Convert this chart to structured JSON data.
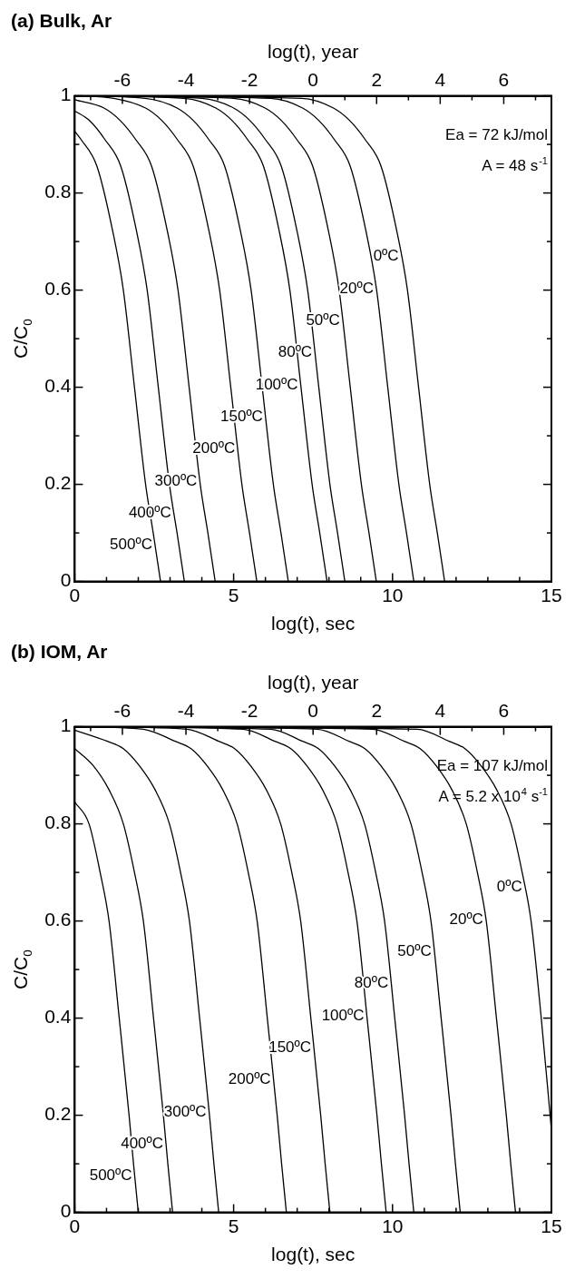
{
  "chart_data": [
    {
      "type": "line",
      "title": "(a) Bulk, Ar",
      "xlabel": "log(t), sec",
      "x2label": "log(t), year",
      "ylabel": "C/C$_{0}$",
      "marker": "none",
      "xlim": [
        0,
        15
      ],
      "xticks": [
        0,
        {
          "value": 1,
          "label": null
        },
        {
          "value": 2,
          "label": null
        },
        {
          "value": 3,
          "label": null
        },
        {
          "value": 4,
          "label": null
        },
        5,
        {
          "value": 6,
          "label": null
        },
        {
          "value": 7,
          "label": null
        },
        {
          "value": 8,
          "label": null
        },
        {
          "value": 9,
          "label": null
        },
        10,
        {
          "value": 11,
          "label": null
        },
        {
          "value": 12,
          "label": null
        },
        {
          "value": 13,
          "label": null
        },
        {
          "value": 14,
          "label": null
        },
        15
      ],
      "x2lim": [
        -7.5,
        7.5
      ],
      "x2ticks": [
        {
          "value": -7,
          "label": null
        },
        -6,
        {
          "value": -5,
          "label": null
        },
        -4,
        {
          "value": -3,
          "label": null
        },
        -2,
        {
          "value": -1,
          "label": null
        },
        0,
        {
          "value": 1,
          "label": null
        },
        2,
        {
          "value": 3,
          "label": null
        },
        4,
        {
          "value": 5,
          "label": null
        },
        6,
        {
          "value": 7,
          "label": null
        }
      ],
      "ylim": [
        0,
        1
      ],
      "yticks": [
        0,
        {
          "value": 0.1,
          "label": null
        },
        0.2,
        {
          "value": 0.3,
          "label": null
        },
        0.4,
        {
          "value": 0.5,
          "label": null
        },
        0.6,
        {
          "value": 0.7,
          "label": null
        },
        0.8,
        {
          "value": 0.9,
          "label": null
        },
        1
      ],
      "series": [
        {
          "name": "500ºC",
          "color": "#000000",
          "x": [
            0,
            0.2,
            0.7,
            1.2,
            1.53,
            1.88,
            2.23,
            2.47,
            2.7
          ],
          "values": [
            0.927,
            0.91,
            0.855,
            0.72,
            0.6,
            0.4,
            0.2,
            0.1,
            0
          ]
        },
        {
          "name": "400ºC",
          "color": "#000000",
          "x": [
            0,
            0.45,
            0.95,
            1.45,
            1.95,
            2.28,
            2.63,
            2.98,
            3.22,
            3.45
          ],
          "values": [
            0.969,
            0.95,
            0.91,
            0.855,
            0.72,
            0.6,
            0.4,
            0.2,
            0.1,
            0
          ]
        },
        {
          "name": "300ºC",
          "color": "#000000",
          "x": [
            0,
            0.92,
            1.42,
            1.92,
            2.42,
            2.92,
            3.25,
            3.6,
            3.95,
            4.19,
            4.42
          ],
          "values": [
            0.992,
            0.975,
            0.95,
            0.91,
            0.855,
            0.72,
            0.6,
            0.4,
            0.2,
            0.1,
            0
          ]
        },
        {
          "name": "200ºC",
          "color": "#000000",
          "x": [
            0,
            1.23,
            2.23,
            2.73,
            3.23,
            3.73,
            4.23,
            4.56,
            4.91,
            5.26,
            5.5,
            5.73
          ],
          "values": [
            1,
            0.995,
            0.975,
            0.95,
            0.91,
            0.855,
            0.72,
            0.6,
            0.4,
            0.2,
            0.1,
            0
          ]
        },
        {
          "name": "150ºC",
          "color": "#000000",
          "x": [
            0,
            2.22,
            3.22,
            3.72,
            4.22,
            4.72,
            5.22,
            5.55,
            5.9,
            6.25,
            6.49,
            6.72
          ],
          "values": [
            1,
            0.995,
            0.975,
            0.95,
            0.91,
            0.855,
            0.72,
            0.6,
            0.4,
            0.2,
            0.1,
            0
          ]
        },
        {
          "name": "100ºC",
          "color": "#000000",
          "x": [
            0,
            3.44,
            4.44,
            4.94,
            5.44,
            5.94,
            6.44,
            6.77,
            7.12,
            7.47,
            7.71,
            7.94
          ],
          "values": [
            1,
            0.995,
            0.975,
            0.95,
            0.91,
            0.855,
            0.72,
            0.6,
            0.4,
            0.2,
            0.1,
            0
          ]
        },
        {
          "name": "80ºC",
          "color": "#000000",
          "x": [
            0,
            4.0,
            5.0,
            5.5,
            6.0,
            6.5,
            7.0,
            7.33,
            7.68,
            8.03,
            8.27,
            8.5
          ],
          "values": [
            1,
            0.995,
            0.975,
            0.95,
            0.91,
            0.855,
            0.72,
            0.6,
            0.4,
            0.2,
            0.1,
            0
          ]
        },
        {
          "name": "50ºC",
          "color": "#000000",
          "x": [
            0,
            4.99,
            5.99,
            6.49,
            6.99,
            7.49,
            7.99,
            8.32,
            8.67,
            9.02,
            9.26,
            9.49
          ],
          "values": [
            1,
            0.995,
            0.975,
            0.95,
            0.91,
            0.855,
            0.72,
            0.6,
            0.4,
            0.2,
            0.1,
            0
          ]
        },
        {
          "name": "20ºC",
          "color": "#000000",
          "x": [
            0,
            6.17,
            7.17,
            7.67,
            8.17,
            8.67,
            9.17,
            9.5,
            9.85,
            10.2,
            10.44,
            10.67
          ],
          "values": [
            1,
            0.995,
            0.975,
            0.95,
            0.91,
            0.855,
            0.72,
            0.6,
            0.4,
            0.2,
            0.1,
            0
          ]
        },
        {
          "name": "0ºC",
          "color": "#000000",
          "x": [
            0,
            7.14,
            8.14,
            8.64,
            9.14,
            9.64,
            10.14,
            10.47,
            10.82,
            11.17,
            11.41,
            11.64
          ],
          "values": [
            1,
            0.995,
            0.975,
            0.95,
            0.91,
            0.855,
            0.72,
            0.6,
            0.4,
            0.2,
            0.1,
            0
          ]
        }
      ],
      "annotations": [
        "Ea = 72 kJ/mol",
        "A = 48 s$^{-1}$"
      ]
    },
    {
      "type": "line",
      "title": "(b) IOM, Ar",
      "xlabel": "log(t), sec",
      "x2label": "log(t), year",
      "ylabel": "C/C$_{0}$",
      "marker": "none",
      "xlim": [
        0,
        15
      ],
      "xticks": [
        0,
        {
          "value": 1,
          "label": null
        },
        {
          "value": 2,
          "label": null
        },
        {
          "value": 3,
          "label": null
        },
        {
          "value": 4,
          "label": null
        },
        5,
        {
          "value": 6,
          "label": null
        },
        {
          "value": 7,
          "label": null
        },
        {
          "value": 8,
          "label": null
        },
        {
          "value": 9,
          "label": null
        },
        10,
        {
          "value": 11,
          "label": null
        },
        {
          "value": 12,
          "label": null
        },
        {
          "value": 13,
          "label": null
        },
        {
          "value": 14,
          "label": null
        },
        15
      ],
      "x2lim": [
        -7.5,
        7.5
      ],
      "x2ticks": [
        {
          "value": -7,
          "label": null
        },
        -6,
        {
          "value": -5,
          "label": null
        },
        -4,
        {
          "value": -3,
          "label": null
        },
        -2,
        {
          "value": -1,
          "label": null
        },
        0,
        {
          "value": 1,
          "label": null
        },
        2,
        {
          "value": 3,
          "label": null
        },
        4,
        {
          "value": 5,
          "label": null
        },
        6,
        {
          "value": 7,
          "label": null
        }
      ],
      "ylim": [
        0,
        1
      ],
      "yticks": [
        0,
        {
          "value": 0.1,
          "label": null
        },
        0.2,
        {
          "value": 0.3,
          "label": null
        },
        0.4,
        {
          "value": 0.5,
          "label": null
        },
        0.6,
        {
          "value": 0.7,
          "label": null
        },
        0.8,
        {
          "value": 0.9,
          "label": null
        },
        1
      ],
      "series": [
        {
          "name": "500ºC",
          "color": "#000000",
          "x": [
            0,
            0.45,
            0.8,
            1.08,
            1.4,
            1.71,
            1.85,
            2.0
          ],
          "values": [
            0.845,
            0.8,
            0.7,
            0.6,
            0.4,
            0.2,
            0.1,
            0
          ]
        },
        {
          "name": "400ºC",
          "color": "#000000",
          "x": [
            0,
            0.58,
            1.08,
            1.53,
            1.88,
            2.16,
            2.48,
            2.79,
            2.93,
            3.08
          ],
          "values": [
            0.955,
            0.92,
            0.87,
            0.8,
            0.7,
            0.6,
            0.4,
            0.2,
            0.1,
            0
          ]
        },
        {
          "name": "300ºC",
          "color": "#000000",
          "x": [
            0,
            1.03,
            1.53,
            2.03,
            2.53,
            2.98,
            3.33,
            3.61,
            3.93,
            4.24,
            4.38,
            4.53
          ],
          "values": [
            0.993,
            0.97,
            0.955,
            0.92,
            0.87,
            0.8,
            0.7,
            0.6,
            0.4,
            0.2,
            0.1,
            0
          ]
        },
        {
          "name": "200ºC",
          "color": "#000000",
          "x": [
            0,
            2.16,
            3.16,
            3.66,
            4.16,
            4.66,
            5.11,
            5.46,
            5.74,
            6.06,
            6.37,
            6.51,
            6.66
          ],
          "values": [
            1,
            0.995,
            0.97,
            0.955,
            0.92,
            0.87,
            0.8,
            0.7,
            0.6,
            0.4,
            0.2,
            0.1,
            0
          ]
        },
        {
          "name": "150ºC",
          "color": "#000000",
          "x": [
            0,
            3.53,
            4.53,
            5.03,
            5.53,
            6.03,
            6.48,
            6.83,
            7.11,
            7.43,
            7.74,
            7.88,
            8.03
          ],
          "values": [
            1,
            0.995,
            0.97,
            0.955,
            0.92,
            0.87,
            0.8,
            0.7,
            0.6,
            0.4,
            0.2,
            0.1,
            0
          ]
        },
        {
          "name": "100ºC",
          "color": "#000000",
          "x": [
            0,
            5.3,
            6.3,
            6.8,
            7.3,
            7.8,
            8.25,
            8.6,
            8.88,
            9.2,
            9.51,
            9.65,
            9.8
          ],
          "values": [
            1,
            0.995,
            0.97,
            0.955,
            0.92,
            0.87,
            0.8,
            0.7,
            0.6,
            0.4,
            0.2,
            0.1,
            0
          ]
        },
        {
          "name": "80ºC",
          "color": "#000000",
          "x": [
            0,
            6.17,
            7.17,
            7.67,
            8.17,
            8.67,
            9.12,
            9.47,
            9.75,
            10.07,
            10.38,
            10.52,
            10.67
          ],
          "values": [
            1,
            0.995,
            0.97,
            0.955,
            0.92,
            0.87,
            0.8,
            0.7,
            0.6,
            0.4,
            0.2,
            0.1,
            0
          ]
        },
        {
          "name": "50ºC",
          "color": "#000000",
          "x": [
            0,
            7.63,
            8.63,
            9.13,
            9.63,
            10.13,
            10.58,
            10.93,
            11.21,
            11.53,
            11.84,
            11.98,
            12.13
          ],
          "values": [
            1,
            0.995,
            0.97,
            0.955,
            0.92,
            0.87,
            0.8,
            0.7,
            0.6,
            0.4,
            0.2,
            0.1,
            0
          ]
        },
        {
          "name": "20ºC",
          "color": "#000000",
          "x": [
            0,
            9.37,
            10.37,
            10.87,
            11.37,
            11.87,
            12.32,
            12.67,
            12.95,
            13.27,
            13.58,
            13.72,
            13.87
          ],
          "values": [
            1,
            0.995,
            0.97,
            0.955,
            0.92,
            0.87,
            0.8,
            0.7,
            0.6,
            0.4,
            0.2,
            0.1,
            0
          ]
        },
        {
          "name": "0ºC",
          "color": "#000000",
          "x": [
            0,
            10.78,
            11.78,
            12.28,
            12.78,
            13.28,
            13.73,
            14.08,
            14.36,
            14.68,
            15
          ],
          "values": [
            1,
            0.995,
            0.97,
            0.955,
            0.92,
            0.87,
            0.8,
            0.7,
            0.6,
            0.4,
            0.17
          ]
        }
      ],
      "annotations": [
        "Ea = 107 kJ/mol",
        "A = 5.2 x 10$^{4}$ s$^{-1}$"
      ]
    }
  ]
}
